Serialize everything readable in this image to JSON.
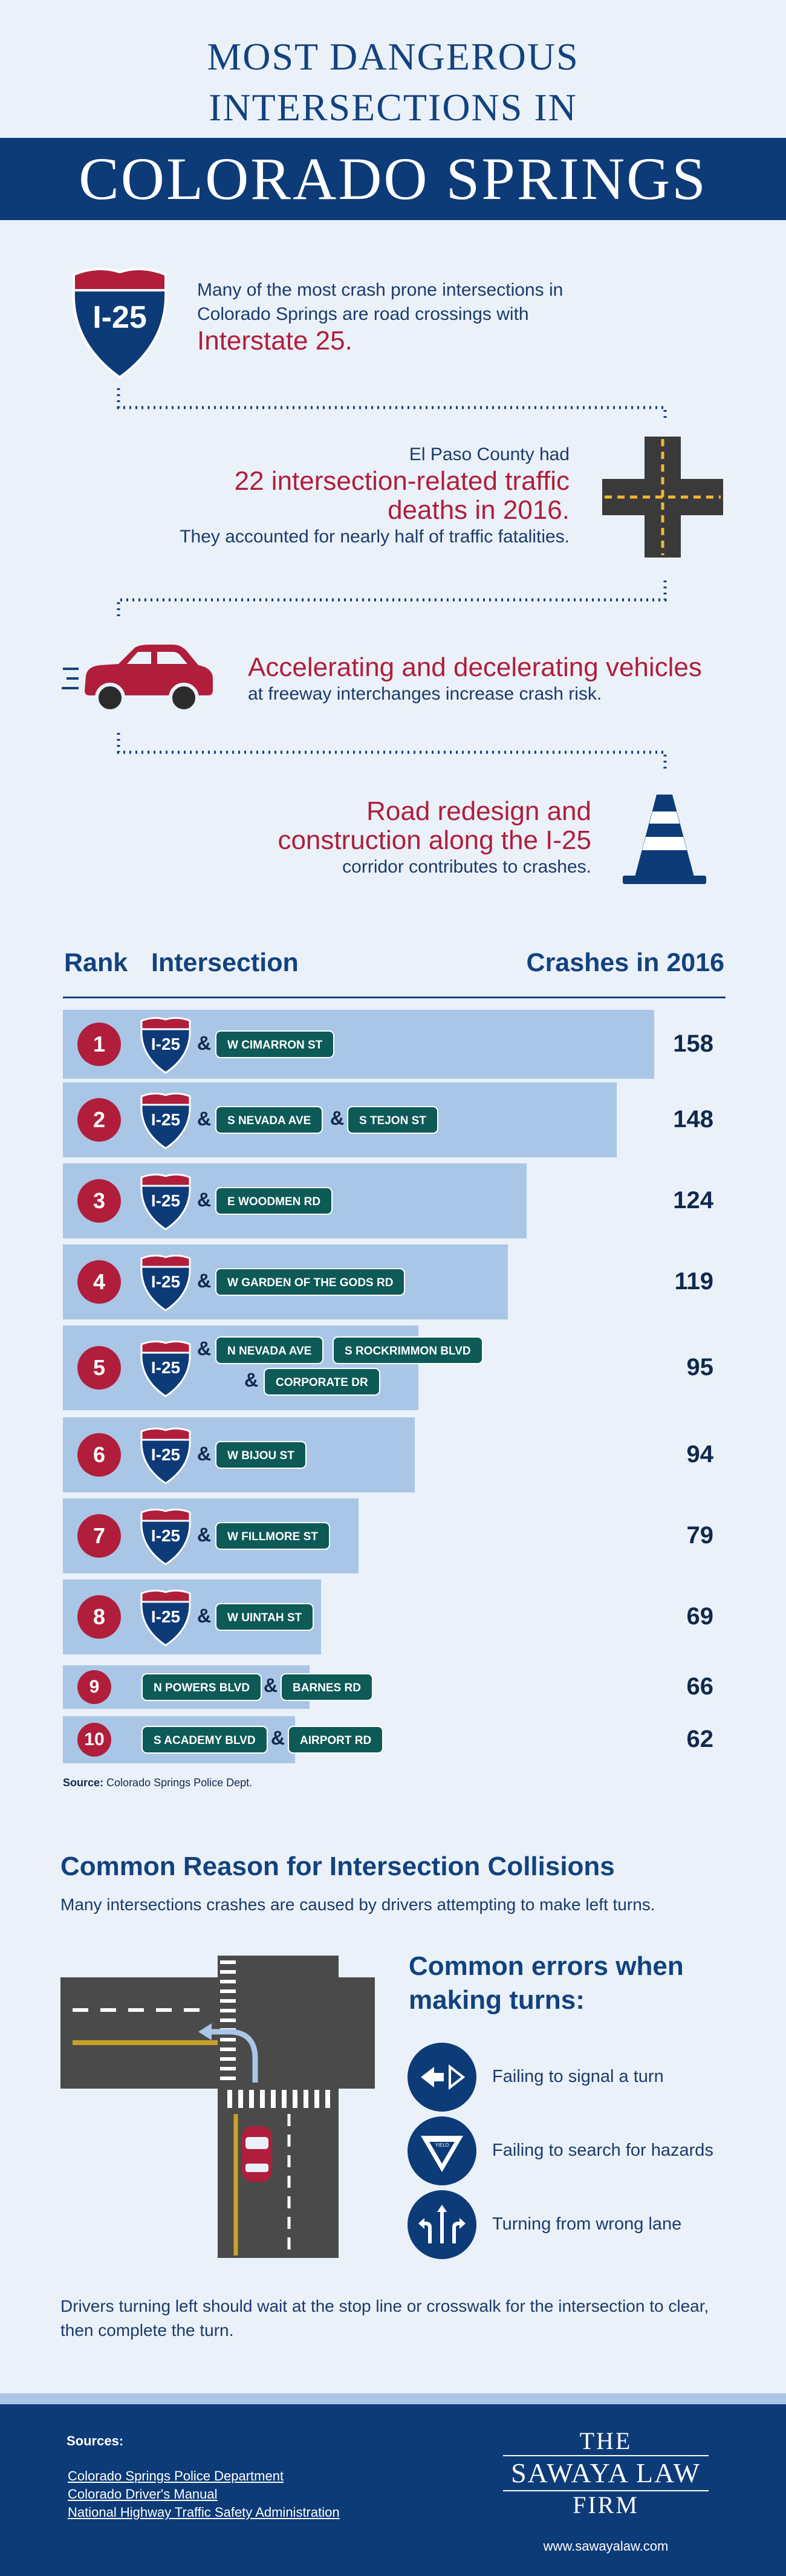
{
  "header": {
    "line1": "MOST DANGEROUS",
    "line2": "INTERSECTIONS IN",
    "band": "COLORADO SPRINGS"
  },
  "facts": {
    "f1_shield": "I-25",
    "f1_a": "Many of the most crash prone intersections in",
    "f1_b": "Colorado Springs are road crossings with",
    "f1_red": "Interstate 25.",
    "f2_a": "El Paso County had",
    "f2_red1": "22 intersection-related traffic",
    "f2_red2": "deaths in 2016.",
    "f2_b": "They accounted for nearly half of traffic fatalities.",
    "f3_red": "Accelerating and decelerating vehicles",
    "f3_b": "at freeway interchanges increase crash risk.",
    "f4_red1": "Road redesign and",
    "f4_red2": "construction along the I-25",
    "f4_b": "corridor contributes to crashes."
  },
  "table": {
    "col_rank": "Rank",
    "col_intersection": "Intersection",
    "col_crashes": "Crashes in 2016",
    "shield_label": "I-25",
    "amp": "&",
    "max_value": 160,
    "rows": [
      {
        "rank": "1",
        "value": 158,
        "count": "158",
        "streets": [
          "W CIMARRON ST"
        ]
      },
      {
        "rank": "2",
        "value": 148,
        "count": "148",
        "streets": [
          "S NEVADA AVE",
          "S TEJON ST"
        ]
      },
      {
        "rank": "3",
        "value": 124,
        "count": "124",
        "streets": [
          "E WOODMEN RD"
        ]
      },
      {
        "rank": "4",
        "value": 119,
        "count": "119",
        "streets": [
          "W GARDEN OF THE GODS RD"
        ]
      },
      {
        "rank": "5",
        "value": 95,
        "count": "95",
        "streets": [
          "N NEVADA AVE",
          "S ROCKRIMMON BLVD",
          "CORPORATE DR"
        ]
      },
      {
        "rank": "6",
        "value": 94,
        "count": "94",
        "streets": [
          "W BIJOU ST"
        ]
      },
      {
        "rank": "7",
        "value": 79,
        "count": "79",
        "streets": [
          "W FILLMORE ST"
        ]
      },
      {
        "rank": "8",
        "value": 69,
        "count": "69",
        "streets": [
          "W UINTAH ST"
        ]
      },
      {
        "rank": "9",
        "value": 66,
        "count": "66",
        "streets": [
          "N POWERS BLVD",
          "BARNES RD"
        ]
      },
      {
        "rank": "10",
        "value": 62,
        "count": "62",
        "streets": [
          "S ACADEMY BLVD",
          "AIRPORT RD"
        ]
      }
    ],
    "source_label": "Source:",
    "source_text": "Colorado Springs Police Dept."
  },
  "section2": {
    "title": "Common Reason for Intersection Collisions",
    "intro": "Many intersections crashes are caused by drivers attempting to make left turns.",
    "errors_title_1": "Common errors when",
    "errors_title_2": "making turns:",
    "errors": [
      {
        "icon": "left-arrow-signal-icon",
        "label": "Failing to signal a turn"
      },
      {
        "icon": "yield-sign-icon",
        "label": "Failing to search for hazards"
      },
      {
        "icon": "lane-arrows-icon",
        "label": "Turning from wrong lane"
      }
    ],
    "yield_text": "YIELD",
    "advice": "Drivers turning left should wait at the stop line or crosswalk for the intersection to clear, then complete the turn."
  },
  "footer": {
    "sources_label": "Sources:",
    "sources": [
      "Colorado Springs Police Department",
      "Colorado Driver's Manual",
      "National Highway Traffic Safety Administration"
    ],
    "logo_the": "THE",
    "logo_name": "SAWAYA LAW",
    "logo_firm": "FIRM",
    "website": "www.sawayalaw.com"
  },
  "colors": {
    "navy": "#0d3b78",
    "red": "#b01e3c",
    "bar": "#a9c6e6",
    "pill": "#0d5a57",
    "background": "#eaf1f8"
  }
}
